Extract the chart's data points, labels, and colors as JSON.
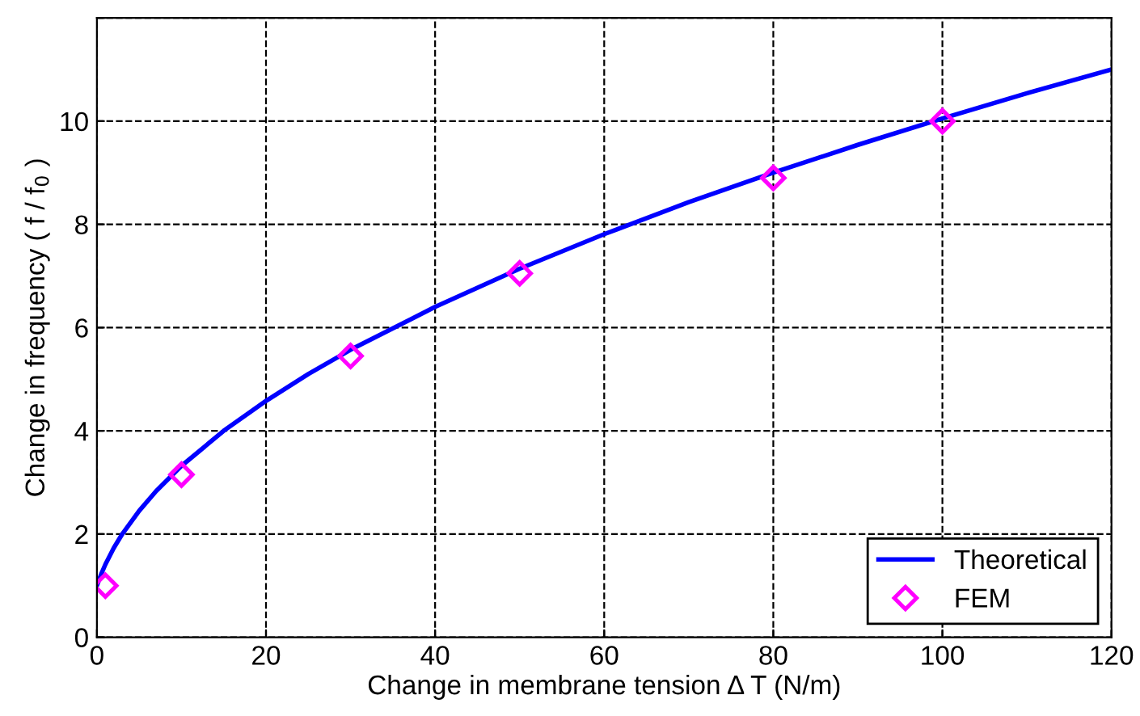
{
  "chart_data": {
    "type": "line",
    "xlabel": "Change in membrane tension Δ T (N/m)",
    "ylabel": "Change in frequency ( f / f$_{0}$ )",
    "series": [
      {
        "name": "Theoretical",
        "color": "#0000ff",
        "marker": "none",
        "line_style": "solid",
        "x": [
          0,
          0.5,
          1,
          2,
          3,
          5,
          7,
          10,
          15,
          20,
          25,
          30,
          40,
          50,
          60,
          70,
          80,
          90,
          100,
          110,
          120
        ],
        "values": [
          1,
          1.22,
          1.41,
          1.73,
          2,
          2.45,
          2.83,
          3.32,
          4,
          4.58,
          5.1,
          5.57,
          6.4,
          7.14,
          7.81,
          8.43,
          9,
          9.54,
          10.05,
          10.54,
          11
        ]
      },
      {
        "name": "FEM",
        "type": "scatter",
        "color": "#ff00ff",
        "marker": "diamond",
        "x": [
          1,
          10,
          30,
          50,
          80,
          100
        ],
        "values": [
          1.0,
          3.15,
          5.45,
          7.05,
          8.9,
          10.0
        ]
      }
    ],
    "xlim": [
      0,
      120
    ],
    "xticks": [
      0,
      20,
      40,
      60,
      80,
      100,
      120
    ],
    "ylim": [
      0,
      12
    ],
    "yticks": [
      0,
      2,
      4,
      6,
      8,
      10,
      {
        "value": 12,
        "label": null
      }
    ],
    "grid": true,
    "legend": "bottom right"
  }
}
